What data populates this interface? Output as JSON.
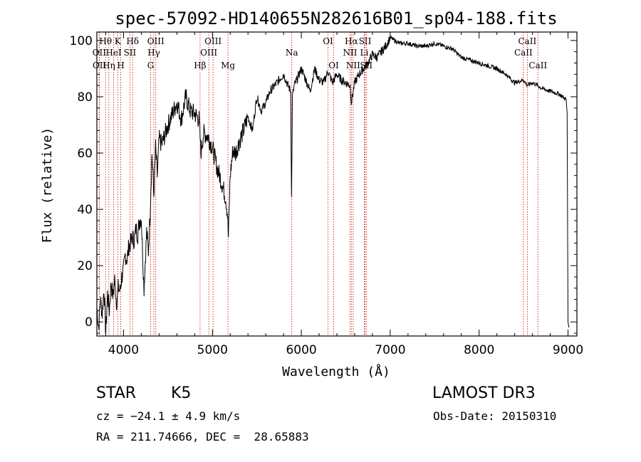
{
  "chart_data": {
    "type": "line",
    "title": "spec-57092-HD140655N282616B01_sp04-188.fits",
    "xlabel": "Wavelength (Å)",
    "ylabel": "Flux (relative)",
    "xlim": [
      3700,
      9100
    ],
    "ylim": [
      -5,
      103
    ],
    "x_ticks": [
      4000,
      5000,
      6000,
      7000,
      8000,
      9000
    ],
    "y_ticks": [
      0,
      20,
      40,
      60,
      80,
      100
    ],
    "series": [
      {
        "name": "flux",
        "color": "#000000",
        "x": [
          3700,
          3720,
          3740,
          3760,
          3780,
          3800,
          3820,
          3840,
          3860,
          3880,
          3900,
          3920,
          3940,
          3960,
          3980,
          4000,
          4020,
          4040,
          4060,
          4080,
          4100,
          4120,
          4140,
          4160,
          4180,
          4200,
          4230,
          4260,
          4280,
          4300,
          4320,
          4340,
          4360,
          4380,
          4400,
          4430,
          4460,
          4500,
          4550,
          4600,
          4650,
          4700,
          4750,
          4800,
          4850,
          4870,
          4900,
          4950,
          5000,
          5050,
          5100,
          5150,
          5170,
          5180,
          5200,
          5230,
          5260,
          5300,
          5350,
          5400,
          5450,
          5500,
          5550,
          5600,
          5650,
          5700,
          5750,
          5800,
          5850,
          5880,
          5890,
          5900,
          5920,
          5950,
          6000,
          6050,
          6100,
          6150,
          6200,
          6250,
          6300,
          6350,
          6400,
          6450,
          6500,
          6550,
          6563,
          6600,
          6650,
          6700,
          6750,
          6800,
          6850,
          6900,
          6950,
          7000,
          7050,
          7100,
          7200,
          7300,
          7400,
          7500,
          7600,
          7700,
          7800,
          7900,
          8000,
          8100,
          8200,
          8300,
          8400,
          8500,
          8542,
          8600,
          8662,
          8700,
          8800,
          8900,
          8980,
          8990,
          9000,
          9010
        ],
        "values": [
          5,
          -2,
          8,
          3,
          12,
          -4,
          10,
          4,
          14,
          9,
          15,
          7,
          12,
          11,
          16,
          18,
          24,
          22,
          27,
          28,
          30,
          29,
          33,
          31,
          36,
          37,
          12,
          32,
          25,
          40,
          60,
          45,
          62,
          52,
          65,
          63,
          66,
          70,
          74,
          78,
          72,
          80,
          75,
          74,
          72,
          60,
          67,
          66,
          62,
          55,
          50,
          44,
          38,
          30,
          52,
          61,
          60,
          64,
          68,
          73,
          68,
          80,
          75,
          78,
          82,
          84,
          86,
          88,
          84,
          82,
          44,
          80,
          84,
          86,
          90,
          86,
          82,
          90,
          86,
          85,
          89,
          85,
          88,
          86,
          85,
          84,
          78,
          85,
          88,
          90,
          92,
          95,
          94,
          96,
          98,
          101,
          100,
          99,
          99,
          98,
          98,
          99,
          98,
          97,
          94,
          93,
          92,
          91,
          90,
          88,
          85,
          86,
          84,
          85,
          84,
          83,
          82,
          81,
          79,
          74,
          0,
          -2
        ]
      }
    ],
    "line_markers": [
      {
        "name": "Hθ",
        "wavelength": 3798,
        "row": 1
      },
      {
        "name": "OII",
        "wavelength": 3727,
        "row": 2
      },
      {
        "name": "OII",
        "wavelength": 3729,
        "row": 3
      },
      {
        "name": "Hη",
        "wavelength": 3835,
        "row": 3
      },
      {
        "name": "HeI",
        "wavelength": 3889,
        "row": 2
      },
      {
        "name": "K",
        "wavelength": 3934,
        "row": 1
      },
      {
        "name": "H",
        "wavelength": 3969,
        "row": 3
      },
      {
        "name": "SII",
        "wavelength": 4072,
        "row": 2
      },
      {
        "name": "Hδ",
        "wavelength": 4102,
        "row": 1
      },
      {
        "name": "OIII",
        "wavelength": 4363,
        "row": 1
      },
      {
        "name": "Hγ",
        "wavelength": 4341,
        "row": 2
      },
      {
        "name": "G",
        "wavelength": 4305,
        "row": 3
      },
      {
        "name": "Hβ",
        "wavelength": 4861,
        "row": 3
      },
      {
        "name": "OIII",
        "wavelength": 5007,
        "row": 1
      },
      {
        "name": "OIII",
        "wavelength": 4959,
        "row": 2
      },
      {
        "name": "Mg",
        "wavelength": 5175,
        "row": 3
      },
      {
        "name": "Na",
        "wavelength": 5893,
        "row": 2
      },
      {
        "name": "OI",
        "wavelength": 6300,
        "row": 1
      },
      {
        "name": "OI",
        "wavelength": 6364,
        "row": 3
      },
      {
        "name": "Hα",
        "wavelength": 6563,
        "row": 1
      },
      {
        "name": "NII",
        "wavelength": 6548,
        "row": 2
      },
      {
        "name": "NII",
        "wavelength": 6583,
        "row": 3
      },
      {
        "name": "SII",
        "wavelength": 6717,
        "row": 1
      },
      {
        "name": "Li",
        "wavelength": 6708,
        "row": 2
      },
      {
        "name": "SII",
        "wavelength": 6731,
        "row": 3
      },
      {
        "name": "CaII",
        "wavelength": 8542,
        "row": 1
      },
      {
        "name": "CaII",
        "wavelength": 8498,
        "row": 2
      },
      {
        "name": "CaII",
        "wavelength": 8662,
        "row": 3
      }
    ]
  },
  "info": {
    "class_label": "STAR",
    "subclass": "K5",
    "survey": "LAMOST DR3",
    "cz": "cz = −24.1 ± 4.9 km/s",
    "obs_date": "Obs-Date: 20150310",
    "coords": "RA = 211.74666, DEC =  28.65883"
  },
  "colors": {
    "spectrum": "#000000",
    "marker": "#cc0000"
  }
}
